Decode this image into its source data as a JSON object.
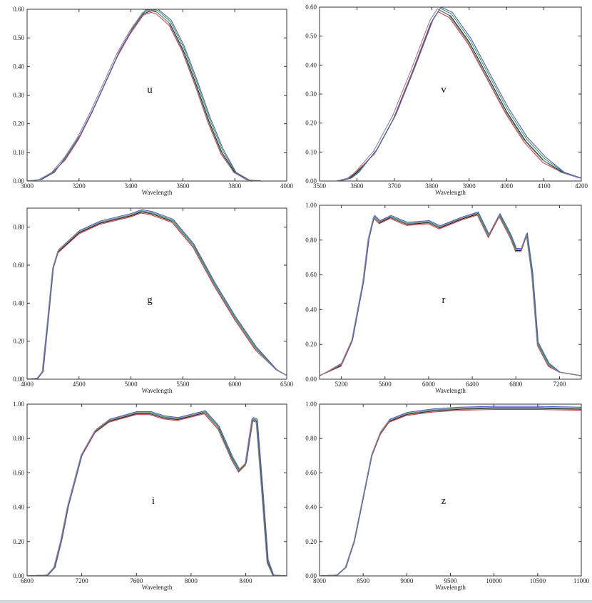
{
  "chart_data": [
    {
      "type": "line",
      "label": "u",
      "xlabel": "Wavelength",
      "xlim": [
        3000,
        4000
      ],
      "ylim": [
        0,
        0.6
      ],
      "xticks": [
        3000,
        3200,
        3400,
        3600,
        3800,
        4000
      ],
      "yticks": [
        0.0,
        0.1,
        0.2,
        0.3,
        0.4,
        0.5,
        0.6
      ],
      "ytick_labels": [
        "0.00",
        "0.10",
        "0.20",
        "0.30",
        "0.40",
        "0.50",
        "0.60"
      ],
      "series": [
        {
          "values": [
            [
              3000,
              0
            ],
            [
              3050,
              0.005
            ],
            [
              3100,
              0.03
            ],
            [
              3150,
              0.08
            ],
            [
              3200,
              0.15
            ],
            [
              3250,
              0.24
            ],
            [
              3300,
              0.34
            ],
            [
              3350,
              0.44
            ],
            [
              3400,
              0.52
            ],
            [
              3450,
              0.585
            ],
            [
              3480,
              0.595
            ],
            [
              3500,
              0.59
            ],
            [
              3550,
              0.55
            ],
            [
              3600,
              0.46
            ],
            [
              3650,
              0.34
            ],
            [
              3700,
              0.21
            ],
            [
              3750,
              0.1
            ],
            [
              3800,
              0.03
            ],
            [
              3850,
              0.004
            ],
            [
              3900,
              0
            ],
            [
              4000,
              0
            ]
          ]
        }
      ]
    },
    {
      "type": "line",
      "label": "v",
      "xlabel": "Wavelength",
      "xlim": [
        3500,
        4200
      ],
      "ylim": [
        0,
        0.6
      ],
      "xticks": [
        3500,
        3600,
        3700,
        3800,
        3900,
        4000,
        4100,
        4200
      ],
      "yticks": [
        0.0,
        0.1,
        0.2,
        0.3,
        0.4,
        0.5,
        0.6
      ],
      "ytick_labels": [
        "0.00",
        "0.10",
        "0.20",
        "0.30",
        "0.40",
        "0.50",
        "0.60"
      ],
      "series": [
        {
          "values": [
            [
              3550,
              0
            ],
            [
              3580,
              0.01
            ],
            [
              3600,
              0.03
            ],
            [
              3650,
              0.1
            ],
            [
              3700,
              0.22
            ],
            [
              3750,
              0.38
            ],
            [
              3800,
              0.55
            ],
            [
              3820,
              0.59
            ],
            [
              3850,
              0.57
            ],
            [
              3900,
              0.48
            ],
            [
              3950,
              0.36
            ],
            [
              4000,
              0.24
            ],
            [
              4050,
              0.14
            ],
            [
              4100,
              0.07
            ],
            [
              4150,
              0.03
            ],
            [
              4200,
              0.01
            ]
          ]
        }
      ]
    },
    {
      "type": "line",
      "label": "g",
      "xlabel": "Wavelength",
      "xlim": [
        4000,
        6500
      ],
      "ylim": [
        0,
        0.9
      ],
      "xticks": [
        4000,
        4500,
        5000,
        5500,
        6000,
        6500
      ],
      "yticks": [
        0.0,
        0.2,
        0.4,
        0.6,
        0.8
      ],
      "ytick_labels": [
        "0.00",
        "0.20",
        "0.40",
        "0.60",
        "0.80"
      ],
      "series": [
        {
          "values": [
            [
              4000,
              0
            ],
            [
              4100,
              0.005
            ],
            [
              4150,
              0.04
            ],
            [
              4200,
              0.3
            ],
            [
              4250,
              0.58
            ],
            [
              4300,
              0.67
            ],
            [
              4400,
              0.72
            ],
            [
              4500,
              0.77
            ],
            [
              4700,
              0.82
            ],
            [
              5000,
              0.86
            ],
            [
              5100,
              0.88
            ],
            [
              5200,
              0.87
            ],
            [
              5400,
              0.83
            ],
            [
              5600,
              0.7
            ],
            [
              5800,
              0.5
            ],
            [
              6000,
              0.32
            ],
            [
              6200,
              0.16
            ],
            [
              6400,
              0.05
            ],
            [
              6500,
              0.02
            ]
          ]
        }
      ]
    },
    {
      "type": "line",
      "label": "r",
      "xlabel": "Wavelength",
      "xlim": [
        5000,
        7400
      ],
      "ylim": [
        0,
        1.0
      ],
      "xticks": [
        5200,
        5600,
        6000,
        6400,
        6800,
        7200
      ],
      "yticks": [
        0.0,
        0.2,
        0.4,
        0.6,
        0.8,
        1.0
      ],
      "ytick_labels": [
        "0.00",
        "0.20",
        "0.40",
        "0.60",
        "0.80",
        "1.00"
      ],
      "series": [
        {
          "values": [
            [
              5000,
              0.02
            ],
            [
              5200,
              0.08
            ],
            [
              5300,
              0.22
            ],
            [
              5400,
              0.55
            ],
            [
              5450,
              0.8
            ],
            [
              5500,
              0.93
            ],
            [
              5550,
              0.9
            ],
            [
              5650,
              0.93
            ],
            [
              5800,
              0.89
            ],
            [
              6000,
              0.9
            ],
            [
              6100,
              0.87
            ],
            [
              6300,
              0.92
            ],
            [
              6450,
              0.95
            ],
            [
              6550,
              0.82
            ],
            [
              6650,
              0.94
            ],
            [
              6750,
              0.82
            ],
            [
              6800,
              0.74
            ],
            [
              6850,
              0.74
            ],
            [
              6900,
              0.83
            ],
            [
              6950,
              0.6
            ],
            [
              7000,
              0.2
            ],
            [
              7100,
              0.08
            ],
            [
              7200,
              0.04
            ],
            [
              7400,
              0.02
            ]
          ]
        }
      ]
    },
    {
      "type": "line",
      "label": "i",
      "xlabel": "Wavelength",
      "xlim": [
        6800,
        8700
      ],
      "ylim": [
        0,
        1.0
      ],
      "xticks": [
        6800,
        7200,
        7600,
        8000,
        8400
      ],
      "yticks": [
        0.0,
        0.2,
        0.4,
        0.6,
        0.8,
        1.0
      ],
      "ytick_labels": [
        "0.00",
        "0.20",
        "0.40",
        "0.60",
        "0.80",
        "1.00"
      ],
      "series": [
        {
          "values": [
            [
              6800,
              0
            ],
            [
              6950,
              0.005
            ],
            [
              7000,
              0.05
            ],
            [
              7050,
              0.2
            ],
            [
              7100,
              0.4
            ],
            [
              7200,
              0.7
            ],
            [
              7300,
              0.84
            ],
            [
              7400,
              0.9
            ],
            [
              7600,
              0.945
            ],
            [
              7700,
              0.945
            ],
            [
              7800,
              0.92
            ],
            [
              7900,
              0.91
            ],
            [
              8000,
              0.93
            ],
            [
              8100,
              0.95
            ],
            [
              8200,
              0.86
            ],
            [
              8300,
              0.68
            ],
            [
              8350,
              0.61
            ],
            [
              8400,
              0.65
            ],
            [
              8450,
              0.91
            ],
            [
              8480,
              0.9
            ],
            [
              8520,
              0.5
            ],
            [
              8560,
              0.08
            ],
            [
              8600,
              0.005
            ],
            [
              8700,
              0
            ]
          ]
        }
      ]
    },
    {
      "type": "line",
      "label": "z",
      "xlabel": "Wavelength",
      "xlim": [
        8000,
        11000
      ],
      "ylim": [
        0,
        1.0
      ],
      "xticks": [
        8000,
        8500,
        9000,
        9500,
        10000,
        10500,
        11000
      ],
      "yticks": [
        0.0,
        0.2,
        0.4,
        0.6,
        0.8,
        1.0
      ],
      "ytick_labels": [
        "0.00",
        "0.20",
        "0.40",
        "0.60",
        "0.80",
        "1.00"
      ],
      "series": [
        {
          "values": [
            [
              8000,
              0
            ],
            [
              8200,
              0.005
            ],
            [
              8300,
              0.05
            ],
            [
              8400,
              0.2
            ],
            [
              8500,
              0.45
            ],
            [
              8600,
              0.7
            ],
            [
              8700,
              0.83
            ],
            [
              8800,
              0.9
            ],
            [
              9000,
              0.94
            ],
            [
              9300,
              0.96
            ],
            [
              9600,
              0.97
            ],
            [
              10000,
              0.975
            ],
            [
              10500,
              0.975
            ],
            [
              11000,
              0.97
            ]
          ]
        }
      ]
    }
  ],
  "series_colors": [
    "#1f1f1f",
    "#3a9a5a",
    "#c0454f",
    "#4a5fc0",
    "#8a8a8a"
  ]
}
